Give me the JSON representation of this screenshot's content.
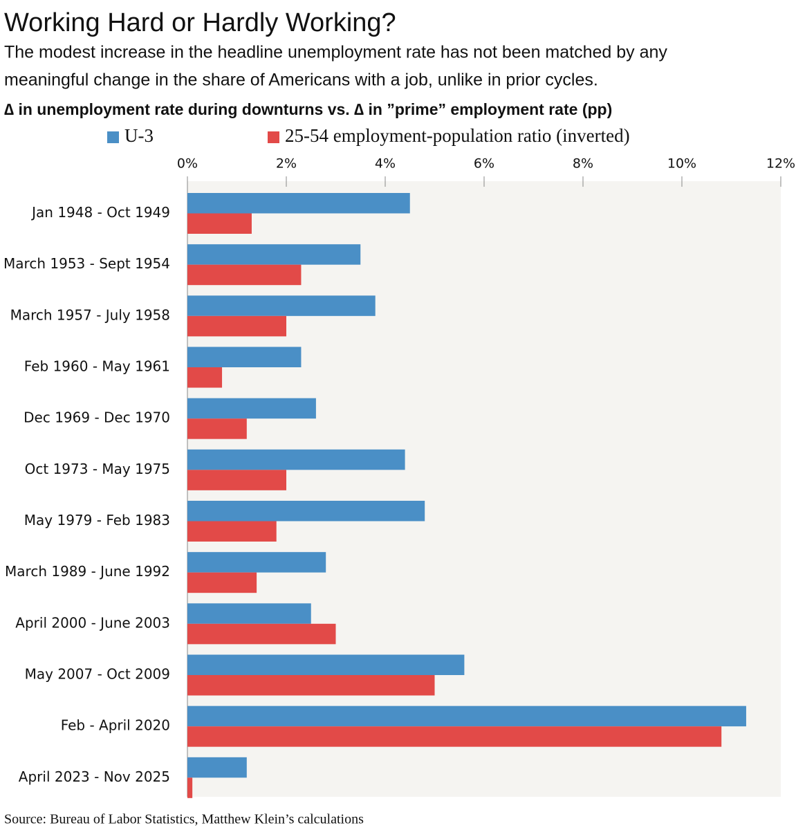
{
  "chart_data": {
    "type": "hbar",
    "title": "Working Hard or Hardly Working?",
    "subtitle": [
      "The modest increase in the headline unemployment rate has not been matched by any",
      "meaningful change in the share of Americans with a job, unlike in prior cycles."
    ],
    "heading": "∆ in unemployment rate during downturns vs. ∆ in ”prime” employment rate (pp)",
    "source": "Source: Bureau of Labor Statistics, Matthew Klein’s calculations",
    "categories": [
      "Jan 1948 - Oct 1949",
      "March 1953 - Sept 1954",
      "March 1957 - July 1958",
      "Feb 1960 - May 1961",
      "Dec 1969 - Dec 1970",
      "Oct 1973 - May 1975",
      "May 1979 - Feb 1983",
      "March 1989 - June 1992",
      "April 2000 - June 2003",
      "May 2007 - Oct 2009",
      "Feb - April 2020",
      "April 2023 - Nov 2025"
    ],
    "series": [
      {
        "name": "U-3",
        "color": "#4a8fc6",
        "values": [
          4.5,
          3.5,
          3.8,
          2.3,
          2.6,
          4.4,
          4.8,
          2.8,
          2.5,
          5.6,
          11.3,
          1.2
        ]
      },
      {
        "name": "25-54 employment-population ratio (inverted)",
        "color": "#e24a48",
        "values": [
          1.3,
          2.3,
          2.0,
          0.7,
          1.2,
          2.0,
          1.8,
          1.4,
          3.0,
          5.0,
          10.8,
          0.1
        ]
      }
    ],
    "xlim": [
      0,
      12
    ],
    "xticks": [
      {
        "value": 0,
        "label": "0%"
      },
      {
        "value": 2,
        "label": "2%"
      },
      {
        "value": 4,
        "label": "4%"
      },
      {
        "value": 6,
        "label": "6%"
      },
      {
        "value": 8,
        "label": "8%"
      },
      {
        "value": 10,
        "label": "10%"
      },
      {
        "value": 12,
        "label": "12%"
      }
    ],
    "grid": false
  }
}
